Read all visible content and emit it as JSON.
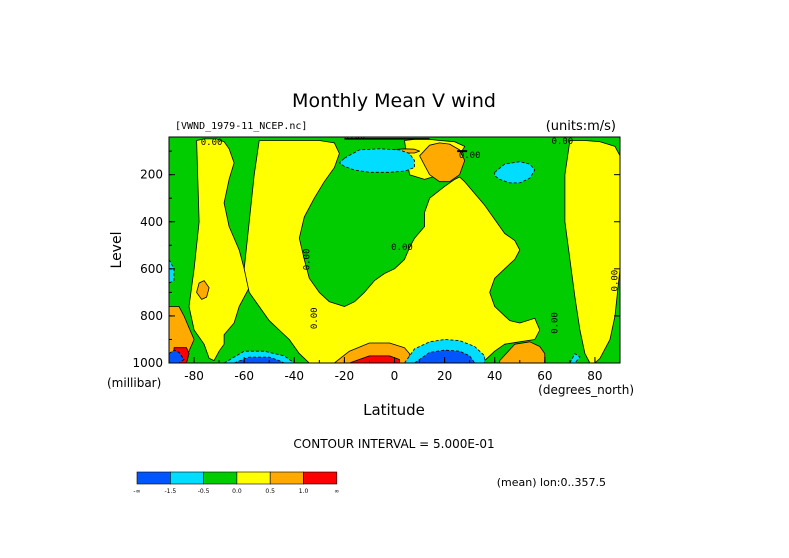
{
  "chart_data": {
    "type": "heatmap",
    "title": "Monthly Mean V wind",
    "dataset_label": "[VWND_1979-11_NCEP.nc]",
    "units_label": "(units:m/s)",
    "xlabel": "Latitude",
    "x_units": "(degrees_north)",
    "ylabel": "Level",
    "y_units": "(millibar)",
    "xlim": [
      -90,
      90
    ],
    "ylim": [
      1000,
      40
    ],
    "x_ticks": [
      {
        "value": -80,
        "label": "-80"
      },
      {
        "value": -60,
        "label": "-60"
      },
      {
        "value": -40,
        "label": "-40"
      },
      {
        "value": -20,
        "label": "-20"
      },
      {
        "value": 0,
        "label": "0"
      },
      {
        "value": 20,
        "label": "20"
      },
      {
        "value": 40,
        "label": "40"
      },
      {
        "value": 60,
        "label": "60"
      },
      {
        "value": 80,
        "label": "80"
      }
    ],
    "y_ticks": [
      {
        "value": 200,
        "label": "200"
      },
      {
        "value": 400,
        "label": "400"
      },
      {
        "value": 600,
        "label": "600"
      },
      {
        "value": 800,
        "label": "800"
      },
      {
        "value": 1000,
        "label": "1000"
      }
    ],
    "contour_interval_text": "CONTOUR INTERVAL = 5.000E-01",
    "mean_note": "(mean) lon:0..357.5",
    "contour_labels": [
      {
        "text": "0.00",
        "lat": -73,
        "lev": 75
      },
      {
        "text": "-0.00",
        "lat": -17,
        "lev": 48
      },
      {
        "text": "0.00",
        "lat": 30,
        "lev": 130
      },
      {
        "text": "0.00",
        "lat": 67,
        "lev": 70
      },
      {
        "text": "0.00",
        "lat": -34,
        "lev": 560
      },
      {
        "text": "0.00",
        "lat": 3,
        "lev": 520
      },
      {
        "text": "0.00",
        "lat": -31,
        "lev": 810
      },
      {
        "text": "0.00",
        "lat": 65,
        "lev": 830
      },
      {
        "text": "0.00",
        "lat": 89,
        "lev": 650
      }
    ],
    "legend": {
      "colors": [
        "#0055ff",
        "#00ddff",
        "#00cc00",
        "#ffff00",
        "#ffaa00",
        "#ff0000"
      ],
      "labels": [
        "-∞",
        "-1.5",
        "-0.5",
        "0.0",
        "0.5",
        "1.0",
        "∞"
      ]
    },
    "levels": [
      {
        "color": "#00cc00",
        "range": "-0.5 to 0.0"
      },
      {
        "color": "#ffff00",
        "range": "0.0 to 0.5"
      }
    ],
    "regions": [
      {
        "level": "green",
        "lat": [
          -90,
          -88,
          -76,
          -70,
          -68,
          -66,
          -62,
          -56,
          -52,
          -48,
          -44,
          -42,
          -40,
          -38,
          -34,
          -30,
          -28,
          -24,
          -20,
          -16,
          -10,
          -6,
          -4,
          0,
          2,
          4,
          8,
          12,
          16,
          20,
          24,
          30,
          34,
          40,
          44,
          48,
          50,
          56,
          60,
          64,
          70,
          74,
          80,
          84,
          90
        ],
        "note": "background field"
      },
      {
        "level": "yellow",
        "lat": [
          -79,
          -76,
          -71,
          -68,
          -66,
          -64,
          -66,
          -68,
          -66,
          -62,
          -60,
          -58,
          -62,
          -64,
          -68,
          -68,
          -70,
          -72,
          -74,
          -76,
          -80,
          -82,
          -80,
          -78
        ],
        "lev": [
          55,
          48,
          48,
          60,
          90,
          150,
          220,
          320,
          420,
          520,
          600,
          680,
          760,
          830,
          880,
          920,
          950,
          990,
          980,
          920,
          860,
          760,
          600,
          400
        ]
      },
      {
        "level": "yellow",
        "lat": [
          -54,
          -40,
          -30,
          -24,
          -22,
          -24,
          -28,
          -32,
          -36,
          -38,
          -36,
          -34,
          -30,
          -26,
          -20,
          -16,
          -12,
          -8,
          -4,
          0,
          4,
          6,
          8,
          12,
          12,
          14,
          20,
          24,
          26,
          28,
          32,
          36,
          40,
          44,
          48,
          50,
          48,
          44,
          40,
          38,
          40,
          44,
          46,
          50,
          56,
          58,
          56,
          50,
          44,
          40,
          36,
          32,
          26,
          20,
          14,
          8,
          4,
          0,
          -4,
          -8,
          -12,
          -18,
          -22,
          -26,
          -30,
          -34,
          -38,
          -42,
          -46,
          -50,
          -54,
          -58,
          -60,
          -58,
          -56
        ],
        "lev": [
          55,
          55,
          55,
          65,
          110,
          170,
          230,
          300,
          380,
          470,
          560,
          640,
          700,
          740,
          760,
          740,
          700,
          650,
          620,
          600,
          560,
          510,
          470,
          420,
          360,
          300,
          250,
          220,
          210,
          230,
          280,
          330,
          390,
          450,
          480,
          520,
          560,
          600,
          640,
          700,
          760,
          800,
          820,
          830,
          810,
          860,
          900,
          910,
          920,
          950,
          990,
          1000,
          1000,
          1000,
          1000,
          1000,
          1000,
          1000,
          1000,
          1000,
          1000,
          1000,
          1000,
          1000,
          1000,
          1000,
          960,
          900,
          860,
          820,
          760,
          700,
          600,
          400,
          200
        ]
      },
      {
        "level": "yellow",
        "lat": [
          70,
          76,
          82,
          88,
          90,
          90,
          88,
          86,
          82,
          80,
          78,
          76,
          74,
          72,
          70,
          68,
          68
        ],
        "lev": [
          55,
          55,
          60,
          80,
          120,
          600,
          800,
          900,
          980,
          1000,
          1000,
          960,
          860,
          720,
          560,
          400,
          200
        ]
      },
      {
        "level": "yellow",
        "lat": [
          4,
          8,
          14,
          18,
          24,
          28,
          24,
          18,
          12,
          6
        ],
        "lev": [
          55,
          50,
          50,
          55,
          60,
          80,
          150,
          200,
          220,
          200
        ]
      },
      {
        "level": "orange",
        "lat": [
          -90,
          -86,
          -84,
          -82,
          -80,
          -82,
          -84,
          -86,
          -90
        ],
        "lev": [
          760,
          760,
          800,
          850,
          900,
          950,
          1000,
          1000,
          1000
        ]
      },
      {
        "level": "orange",
        "lat": [
          -78,
          -76,
          -74,
          -75,
          -77,
          -79
        ],
        "lev": [
          660,
          650,
          680,
          720,
          730,
          700
        ]
      },
      {
        "level": "orange",
        "lat": [
          -24,
          -18,
          -10,
          -2,
          4,
          6,
          6,
          4,
          -2,
          -10,
          -18,
          -22,
          -24
        ],
        "lev": [
          1000,
          950,
          915,
          915,
          935,
          960,
          1000,
          1000,
          1000,
          1000,
          1000,
          1000,
          1000
        ]
      },
      {
        "level": "orange",
        "lat": [
          42,
          48,
          54,
          58,
          60,
          60,
          56,
          48,
          44,
          42
        ],
        "lev": [
          990,
          920,
          910,
          930,
          960,
          1000,
          1000,
          1000,
          1000,
          1000
        ]
      },
      {
        "level": "orange",
        "lat": [
          10,
          14,
          18,
          22,
          26,
          28,
          26,
          22,
          18,
          14,
          12
        ],
        "lev": [
          120,
          75,
          65,
          70,
          95,
          140,
          200,
          230,
          230,
          200,
          160
        ]
      },
      {
        "level": "orange",
        "lat": [
          -2,
          4,
          8,
          10,
          8,
          4,
          -2,
          -4
        ],
        "lev": [
          95,
          90,
          92,
          100,
          108,
          108,
          104,
          100
        ]
      },
      {
        "level": "red",
        "lat": [
          -88,
          -83,
          -82,
          -83,
          -88
        ],
        "lev": [
          935,
          935,
          960,
          1000,
          1000
        ]
      },
      {
        "level": "red",
        "lat": [
          -18,
          -10,
          -2,
          2,
          2,
          -4,
          -12,
          -18
        ],
        "lev": [
          1000,
          970,
          970,
          985,
          1000,
          1000,
          1000,
          1000
        ]
      },
      {
        "level": "cyan",
        "lat": [
          -20,
          -14,
          -6,
          2,
          6,
          8,
          8,
          4,
          -2,
          -10,
          -16,
          -20,
          -22
        ],
        "lev": [
          130,
          95,
          90,
          95,
          110,
          140,
          170,
          185,
          190,
          190,
          180,
          165,
          150
        ]
      },
      {
        "level": "cyan",
        "lat": [
          40,
          44,
          50,
          54,
          56,
          54,
          50,
          46,
          42,
          40
        ],
        "lev": [
          190,
          155,
          145,
          155,
          180,
          215,
          235,
          235,
          220,
          205
        ]
      },
      {
        "level": "cyan",
        "lat": [
          4,
          8,
          14,
          20,
          26,
          32,
          36,
          36,
          34,
          4
        ],
        "lev": [
          1000,
          940,
          910,
          900,
          905,
          930,
          970,
          1000,
          1000,
          1000
        ]
      },
      {
        "level": "cyan",
        "lat": [
          -68,
          -60,
          -52,
          -44,
          -40,
          -40,
          -68
        ],
        "lev": [
          1000,
          950,
          950,
          970,
          1000,
          1000,
          1000
        ]
      },
      {
        "level": "cyan",
        "lat": [
          -90,
          -88,
          -88,
          -90
        ],
        "lev": [
          560,
          600,
          650,
          660
        ]
      },
      {
        "level": "cyan",
        "lat": [
          70,
          72,
          74,
          72,
          70
        ],
        "lev": [
          1000,
          960,
          975,
          1000,
          1000
        ]
      },
      {
        "level": "blue",
        "lat": [
          8,
          14,
          20,
          26,
          30,
          32,
          30,
          8
        ],
        "lev": [
          1000,
          955,
          945,
          950,
          970,
          1000,
          1000,
          1000
        ]
      },
      {
        "level": "blue",
        "lat": [
          -64,
          -58,
          -50,
          -46,
          -44,
          -64
        ],
        "lev": [
          1000,
          975,
          975,
          990,
          1000,
          1000
        ]
      },
      {
        "level": "blue",
        "lat": [
          -90,
          -88,
          -86,
          -84,
          -86,
          -90
        ],
        "lev": [
          960,
          945,
          955,
          985,
          1000,
          1000
        ]
      }
    ]
  }
}
